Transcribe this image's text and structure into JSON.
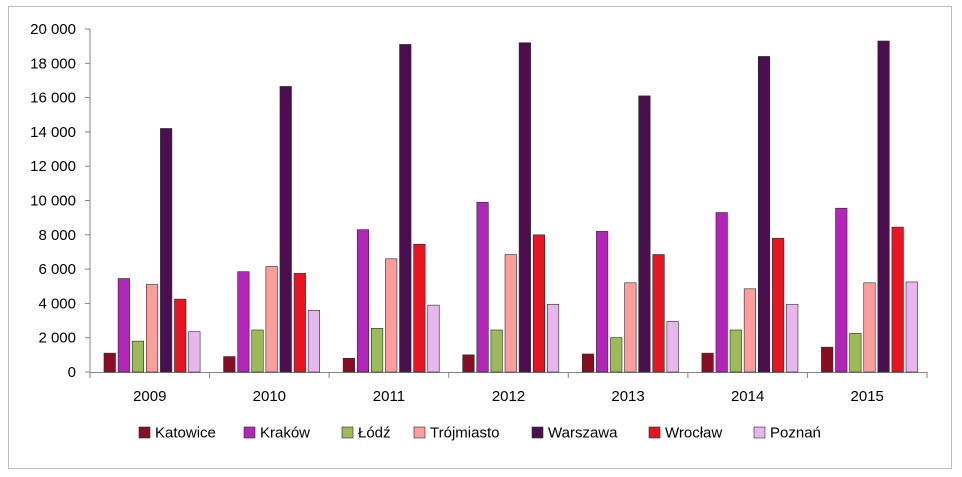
{
  "chart_data": {
    "type": "bar",
    "title": "",
    "xlabel": "",
    "ylabel": "",
    "categories": [
      "2009",
      "2010",
      "2011",
      "2012",
      "2013",
      "2014",
      "2015"
    ],
    "ylim": [
      0,
      20000
    ],
    "yticks": [
      0,
      2000,
      4000,
      6000,
      8000,
      10000,
      12000,
      14000,
      16000,
      18000,
      20000
    ],
    "ytick_labels": [
      "0",
      "2 000",
      "4 000",
      "6 000",
      "8 000",
      "10 000",
      "12 000",
      "14 000",
      "16 000",
      "18 000",
      "20 000"
    ],
    "grid": false,
    "legend_position": "bottom",
    "series": [
      {
        "name": "Katowice",
        "color": "#8b0d22",
        "values": [
          1100,
          900,
          800,
          1000,
          1050,
          1100,
          1450
        ]
      },
      {
        "name": "Kraków",
        "color": "#b324b8",
        "values": [
          5450,
          5850,
          8300,
          9900,
          8200,
          9300,
          9550
        ]
      },
      {
        "name": "Łódź",
        "color": "#9bbb59",
        "values": [
          1800,
          2450,
          2550,
          2450,
          2000,
          2450,
          2250
        ]
      },
      {
        "name": "Trójmiasto",
        "color": "#ff9d9d",
        "values": [
          5100,
          6150,
          6600,
          6850,
          5200,
          4850,
          5200
        ]
      },
      {
        "name": "Warszawa",
        "color": "#4b0f4f",
        "values": [
          14200,
          16650,
          19100,
          19200,
          16100,
          18400,
          19300
        ]
      },
      {
        "name": "Wrocław",
        "color": "#e8141f",
        "values": [
          4250,
          5750,
          7450,
          8000,
          6850,
          7800,
          8450
        ]
      },
      {
        "name": "Poznań",
        "color": "#e8b6ee",
        "values": [
          2350,
          3600,
          3900,
          3950,
          2950,
          3950,
          5250
        ]
      }
    ]
  }
}
